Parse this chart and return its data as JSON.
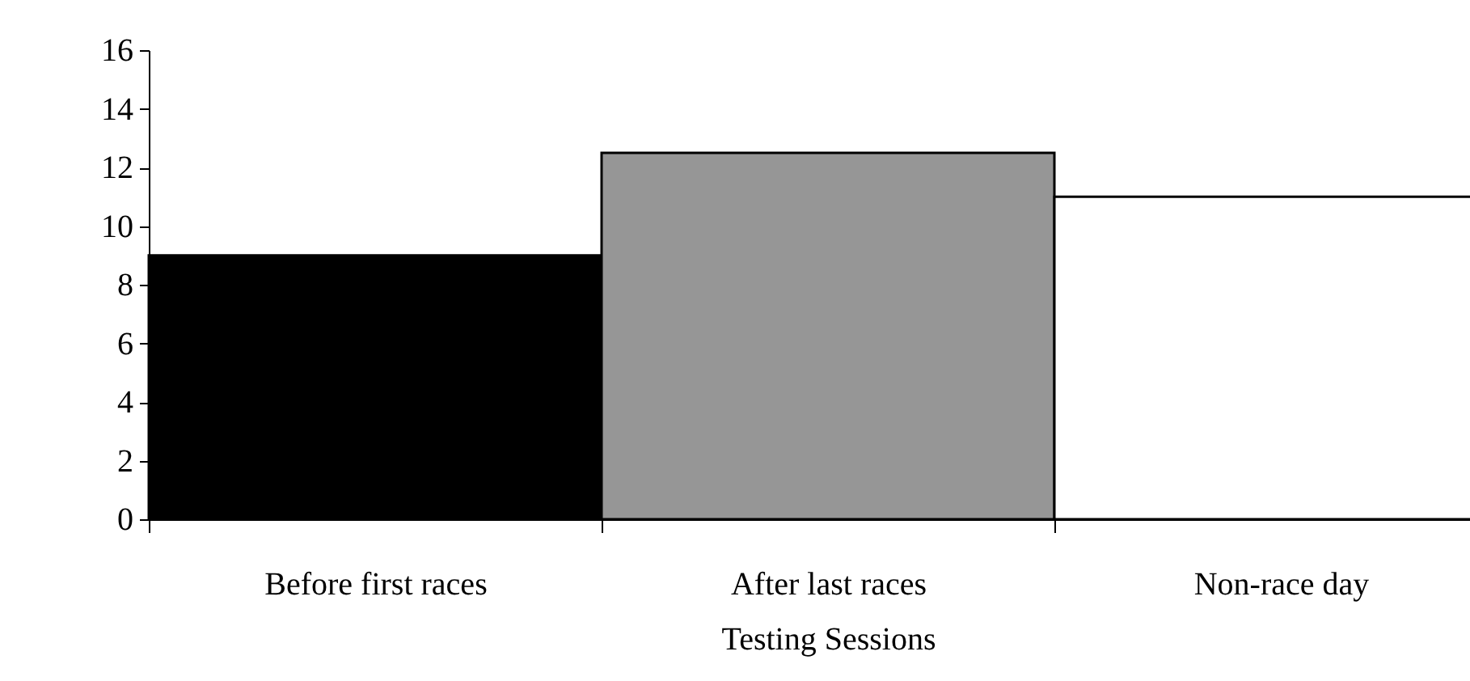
{
  "chart_data": {
    "type": "bar",
    "xlabel": "Testing Sessions",
    "categories": [
      "Before first races",
      "After last races",
      "Non-race day"
    ],
    "values": [
      9,
      12.5,
      11
    ],
    "colors": [
      "#000000",
      "#969696",
      "#ffffff"
    ],
    "ylim": [
      0,
      16
    ],
    "yticks": [
      0,
      2,
      4,
      6,
      8,
      10,
      12,
      14,
      16
    ],
    "grid": false
  }
}
